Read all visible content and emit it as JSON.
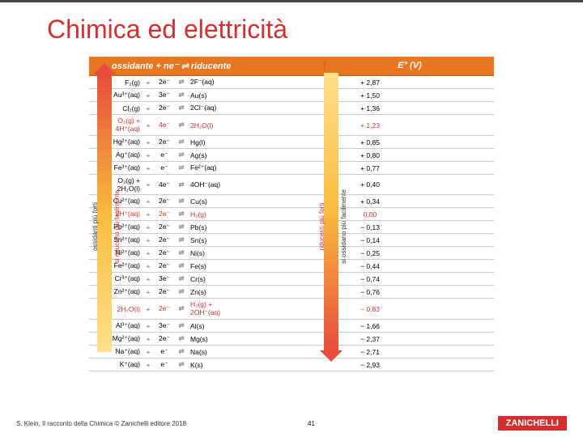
{
  "title": "Chimica ed elettricità",
  "header": {
    "main": "ossidante + ne⁻ ⇌ riducente",
    "e": "E° (V)"
  },
  "arrow_labels": {
    "left_outer": "ossidanti più forti",
    "left_inner": "si riducono più facilmente",
    "right_outer": "riducenti più forti",
    "right_inner": "si ossidano più facilmente"
  },
  "rows": [
    {
      "ox": "F₂(g)",
      "ne": "2e⁻",
      "red": "2F⁻(aq)",
      "e": "+ 2,87",
      "hl": false
    },
    {
      "ox": "Au³⁺(aq)",
      "ne": "3e⁻",
      "red": "Au(s)",
      "e": "+ 1,50",
      "hl": false
    },
    {
      "ox": "Cl₂(g)",
      "ne": "2e⁻",
      "red": "2Cl⁻(aq)",
      "e": "+ 1,36",
      "hl": false
    },
    {
      "ox": "O₂(g) + 4H⁺(aq)",
      "ne": "4e⁻",
      "red": "2H₂O(l)",
      "e": "+ 1,23",
      "hl": true
    },
    {
      "ox": "Hg²⁺(aq)",
      "ne": "2e⁻",
      "red": "Hg(l)",
      "e": "+ 0,85",
      "hl": false
    },
    {
      "ox": "Ag⁺(aq)",
      "ne": "e⁻",
      "red": "Ag(s)",
      "e": "+ 0,80",
      "hl": false
    },
    {
      "ox": "Fe³⁺(aq)",
      "ne": "e⁻",
      "red": "Fe²⁺(aq)",
      "e": "+ 0,77",
      "hl": false
    },
    {
      "ox": "O₂(g) + 2H₂O(l)",
      "ne": "4e⁻",
      "red": "4OH⁻(aq)",
      "e": "+ 0,40",
      "hl": false
    },
    {
      "ox": "Cu²⁺(aq)",
      "ne": "2e⁻",
      "red": "Cu(s)",
      "e": "+ 0,34",
      "hl": false
    },
    {
      "ox": "2H⁺(aq)",
      "ne": "2e⁻",
      "red": "H₂(g)",
      "e": "0,00",
      "hl": true
    },
    {
      "ox": "Pb²⁺(aq)",
      "ne": "2e⁻",
      "red": "Pb(s)",
      "e": "− 0,13",
      "hl": false
    },
    {
      "ox": "Sn²⁺(aq)",
      "ne": "2e⁻",
      "red": "Sn(s)",
      "e": "− 0,14",
      "hl": false
    },
    {
      "ox": "Ni²⁺(aq)",
      "ne": "2e⁻",
      "red": "Ni(s)",
      "e": "− 0,25",
      "hl": false
    },
    {
      "ox": "Fe²⁺(aq)",
      "ne": "2e⁻",
      "red": "Fe(s)",
      "e": "− 0,44",
      "hl": false
    },
    {
      "ox": "Cr³⁺(aq)",
      "ne": "3e⁻",
      "red": "Cr(s)",
      "e": "− 0,74",
      "hl": false
    },
    {
      "ox": "Zn²⁺(aq)",
      "ne": "2e⁻",
      "red": "Zn(s)",
      "e": "− 0,76",
      "hl": false
    },
    {
      "ox": "2H₂O(l)",
      "ne": "2e⁻",
      "red": "H₂(g) + 2OH⁻(aq)",
      "e": "− 0,83",
      "hl": true
    },
    {
      "ox": "Al³⁺(aq)",
      "ne": "3e⁻",
      "red": "Al(s)",
      "e": "− 1,66",
      "hl": false
    },
    {
      "ox": "Mg²⁺(aq)",
      "ne": "2e⁻",
      "red": "Mg(s)",
      "e": "− 2,37",
      "hl": false
    },
    {
      "ox": "Na⁺(aq)",
      "ne": "e⁻",
      "red": "Na(s)",
      "e": "− 2,71",
      "hl": false
    },
    {
      "ox": "K⁺(aq)",
      "ne": "e⁻",
      "red": "K(s)",
      "e": "− 2,93",
      "hl": false
    }
  ],
  "footer": "S. Klein, Il racconto della Chimica © Zanichelli editore 2018",
  "page_number": "41",
  "logo": "ZANICHELLI",
  "colors": {
    "title": "#d32f2f",
    "header_bg": "#e87722",
    "highlight": "#d32f2f",
    "grid": "#cccccc",
    "arrow_top": "#e74c3c",
    "arrow_mid": "#f8bb3c",
    "arrow_bot": "#ffe08a",
    "logo_bg": "#d32f2f"
  }
}
